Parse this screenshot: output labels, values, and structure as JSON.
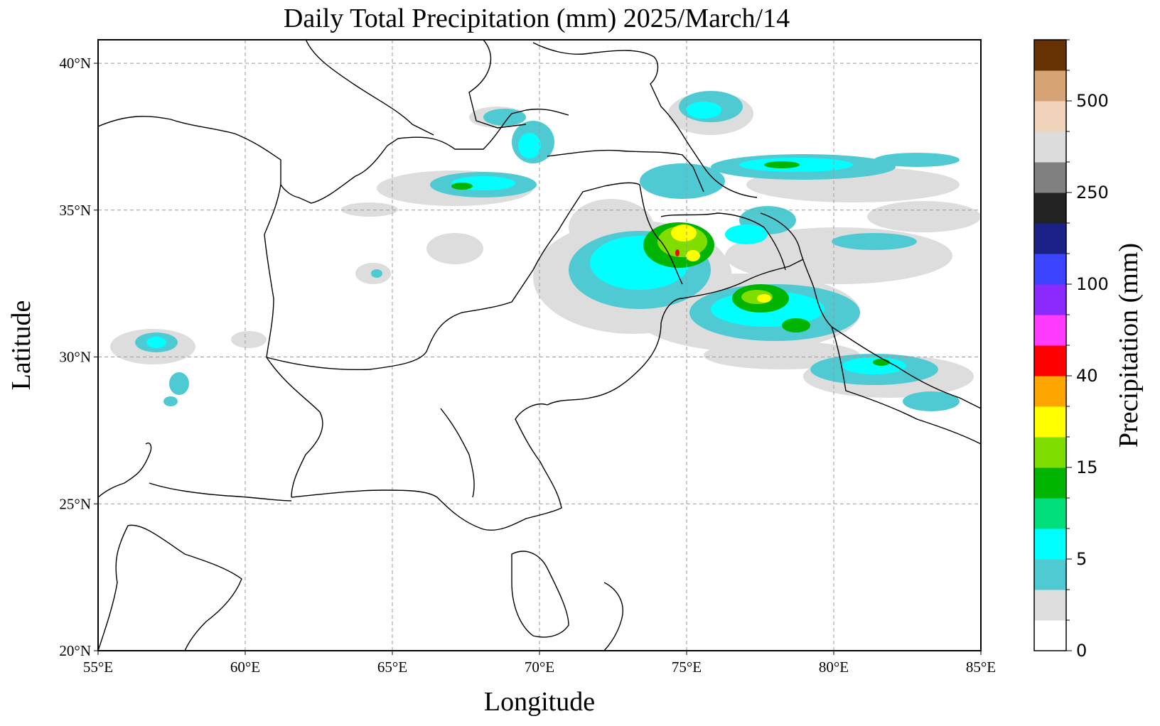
{
  "title": "Daily Total Precipitation (mm)  2025/March/14",
  "xlabel": "Longitude",
  "ylabel": "Latitude",
  "lon_ticks": [
    {
      "value": 55,
      "label": "55°E"
    },
    {
      "value": 60,
      "label": "60°E"
    },
    {
      "value": 65,
      "label": "65°E"
    },
    {
      "value": 70,
      "label": "70°E"
    },
    {
      "value": 75,
      "label": "75°E"
    },
    {
      "value": 80,
      "label": "80°E"
    },
    {
      "value": 85,
      "label": "85°E"
    }
  ],
  "lat_ticks": [
    {
      "value": 20,
      "label": "20°N"
    },
    {
      "value": 25,
      "label": "25°N"
    },
    {
      "value": 30,
      "label": "30°N"
    },
    {
      "value": 35,
      "label": "35°N"
    },
    {
      "value": 40,
      "label": "40°N"
    }
  ],
  "extent": {
    "lon_min": 55,
    "lon_max": 85,
    "lat_min": 20,
    "lat_max": 40.8
  },
  "grid": true,
  "colorbar": {
    "label": "Precipitation (mm)",
    "colors": [
      "#ffffff",
      "#dddddd",
      "#4fcad2",
      "#00ffff",
      "#00de7c",
      "#00b400",
      "#7fde00",
      "#ffff00",
      "#ffa500",
      "#ff0000",
      "#ff3cff",
      "#8a2aff",
      "#3c44ff",
      "#1c2188",
      "#222222",
      "#808080",
      "#dcdcdc",
      "#f0d4bc",
      "#d7a478",
      "#673203"
    ],
    "labeled_ticks": [
      {
        "index": 0,
        "label": "0"
      },
      {
        "index": 3,
        "label": "5"
      },
      {
        "index": 6,
        "label": "15"
      },
      {
        "index": 9,
        "label": "40"
      },
      {
        "index": 12,
        "label": "100"
      },
      {
        "index": 15,
        "label": "250"
      },
      {
        "index": 18,
        "label": "500"
      }
    ]
  }
}
